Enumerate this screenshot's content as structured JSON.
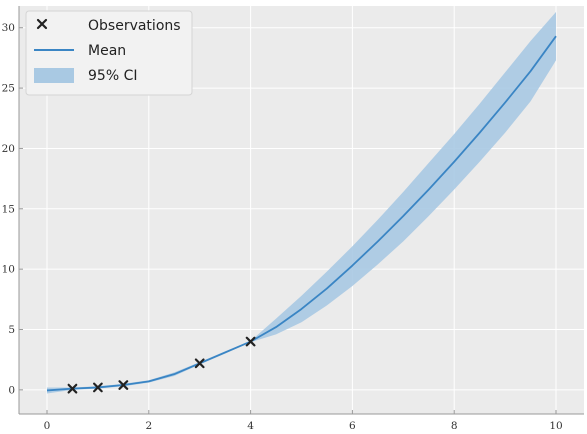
{
  "chart_data": {
    "type": "line",
    "title": "",
    "xlabel": "",
    "ylabel": "",
    "xlim": [
      -0.55,
      10.55
    ],
    "ylim": [
      -2.0,
      31.8
    ],
    "xticks": [
      0,
      2,
      4,
      6,
      8,
      10
    ],
    "yticks": [
      0,
      5,
      10,
      15,
      20,
      25,
      30
    ],
    "grid": true,
    "legend_position": "top-left",
    "legend": [
      {
        "label": "Observations",
        "kind": "marker"
      },
      {
        "label": "Mean",
        "kind": "line"
      },
      {
        "label": "95% CI",
        "kind": "patch"
      }
    ],
    "observations": {
      "name": "Observations",
      "x": [
        0.5,
        1.0,
        1.5,
        3.0,
        4.0
      ],
      "y": [
        0.1,
        0.2,
        0.4,
        2.2,
        4.0
      ]
    },
    "mean": {
      "name": "Mean",
      "x": [
        0,
        0.5,
        1.0,
        1.5,
        2.0,
        2.5,
        3.0,
        3.5,
        4.0,
        4.5,
        5.0,
        5.5,
        6.0,
        6.5,
        7.0,
        7.5,
        8.0,
        8.5,
        9.0,
        9.5,
        10.0
      ],
      "y": [
        -0.05,
        0.1,
        0.2,
        0.4,
        0.7,
        1.3,
        2.2,
        3.1,
        4.0,
        5.2,
        6.7,
        8.4,
        10.3,
        12.3,
        14.4,
        16.6,
        18.9,
        21.3,
        23.8,
        26.4,
        29.3
      ]
    },
    "ci95": {
      "name": "95% CI",
      "x": [
        0,
        0.5,
        1.0,
        1.5,
        2.0,
        2.5,
        3.0,
        3.5,
        4.0,
        4.5,
        5.0,
        5.5,
        6.0,
        6.5,
        7.0,
        7.5,
        8.0,
        8.5,
        9.0,
        9.5,
        10.0
      ],
      "lower": [
        -0.3,
        0.0,
        0.1,
        0.3,
        0.6,
        1.15,
        2.1,
        3.0,
        3.95,
        4.6,
        5.6,
        7.0,
        8.6,
        10.4,
        12.3,
        14.4,
        16.6,
        18.9,
        21.3,
        23.9,
        27.3
      ],
      "upper": [
        0.2,
        0.2,
        0.3,
        0.5,
        0.8,
        1.45,
        2.3,
        3.2,
        4.05,
        5.9,
        7.8,
        9.8,
        11.9,
        14.1,
        16.4,
        18.8,
        21.2,
        23.7,
        26.3,
        28.9,
        31.3
      ]
    },
    "colors": {
      "background": "#ebebeb",
      "grid": "#ffffff",
      "mean": "#3a85c4",
      "ci": "#a9c9e3",
      "marker": "#222222",
      "axis": "#9a9a9a"
    }
  }
}
